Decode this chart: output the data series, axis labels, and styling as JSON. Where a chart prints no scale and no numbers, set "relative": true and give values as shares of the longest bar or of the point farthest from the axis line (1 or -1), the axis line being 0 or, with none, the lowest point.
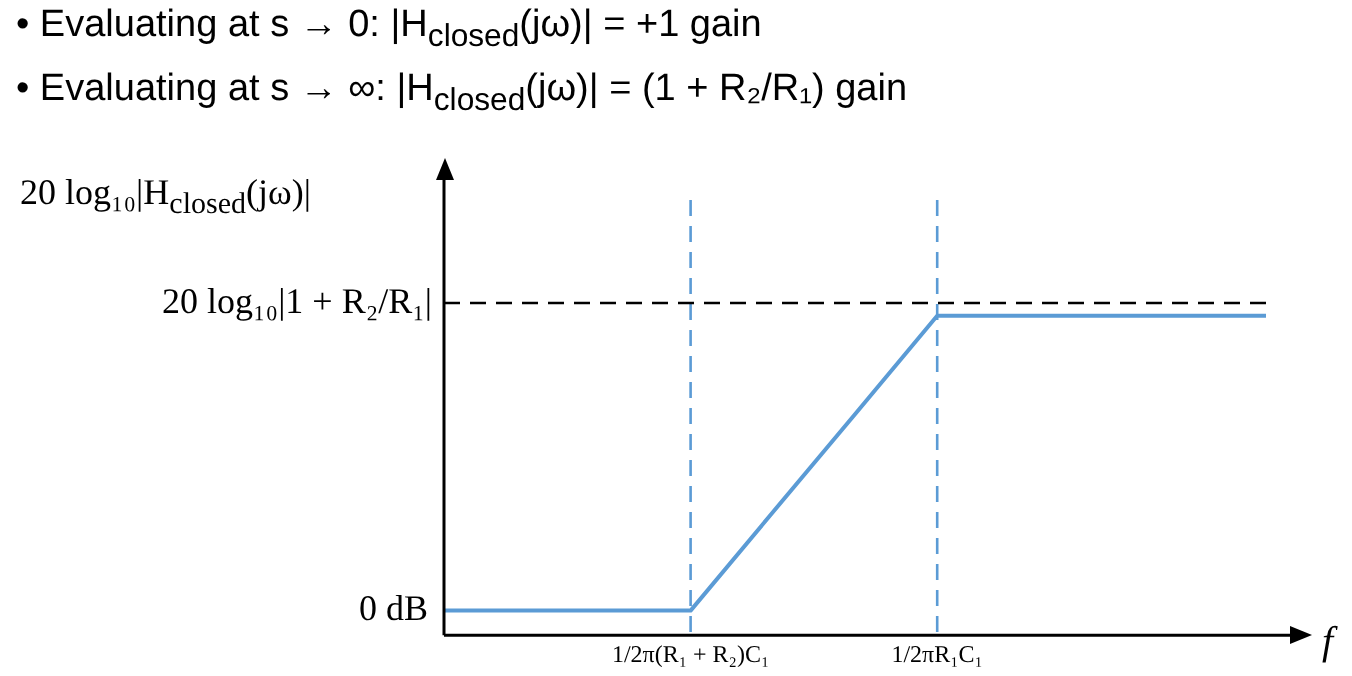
{
  "chart_data": {
    "type": "line",
    "title": "• Evaluating at s → 0:     |H$_{closed}$(jω)| = +1 gain",
    "subtitle": "• Evaluating at s → ∞:    |H$_{closed}$(jω)| = (1 + R₂/R₁) gain",
    "ylabel": "20 log₁₀|H$_{closed}$(jω)|",
    "xlabel": "f",
    "relative": true,
    "categories": [
      null,
      null,
      null,
      "1/2π(R₁ + R₂)C₁",
      null,
      null,
      "1/2πR₁C₁",
      null,
      null,
      null,
      null
    ],
    "series": [
      {
        "color": "#5b9bd5",
        "values": [
          0.077,
          0.077,
          0.077,
          0.077,
          0.385,
          0.692,
          1,
          1,
          1,
          1,
          1
        ]
      }
    ],
    "ref_lines": [
      {
        "axis": "x",
        "value": "1/2π(R₁ + R₂)C₁",
        "color": "#5b9bd5",
        "line_style": "dashed"
      },
      {
        "axis": "x",
        "value": "1/2πR₁C₁",
        "color": "#5b9bd5",
        "line_style": "dashed"
      },
      {
        "axis": "y",
        "value": 1.04,
        "label": "20 log₁₀|1 + R₂/R₁|",
        "color": "#000000",
        "line_style": "dashed"
      }
    ],
    "annotations": [
      "0 dB"
    ],
    "legend": false,
    "marker": "none",
    "line_style": "solid"
  }
}
